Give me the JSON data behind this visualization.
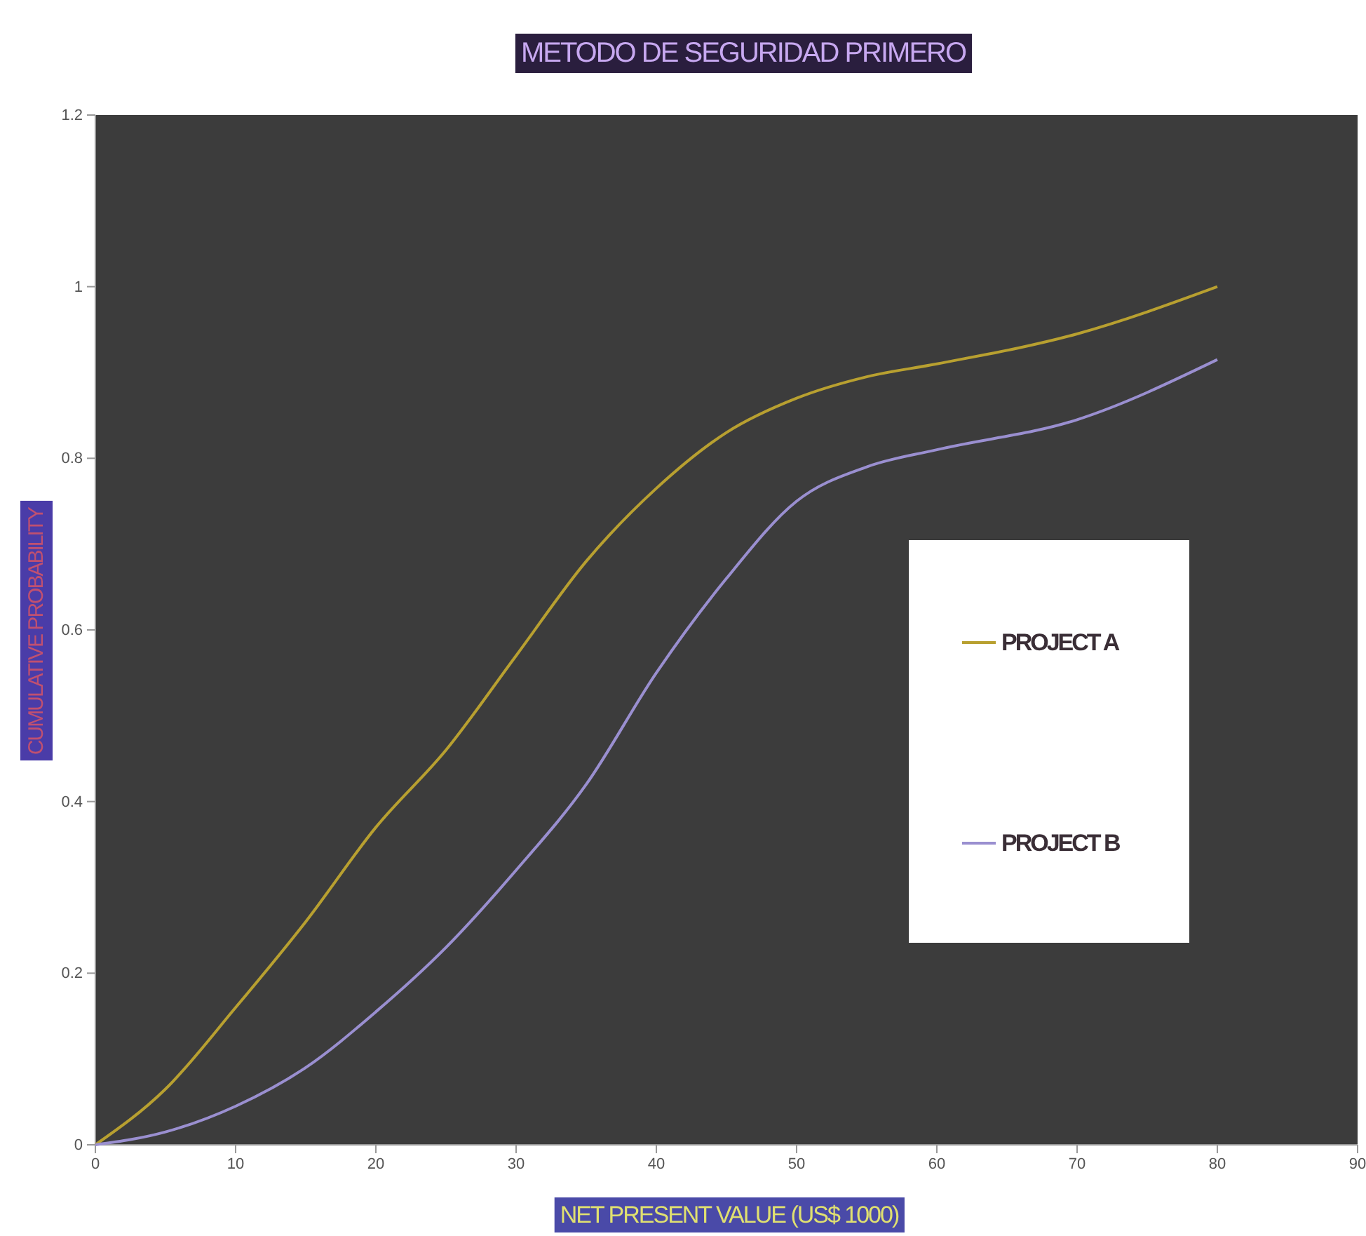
{
  "chart_data": {
    "type": "line",
    "title": "METODO DE SEGURIDAD PRIMERO",
    "xlabel": "NET PRESENT VALUE (US$ 1000)",
    "ylabel": "CUMULATIVE PROBABILITY",
    "x": [
      0,
      5,
      10,
      15,
      20,
      25,
      30,
      35,
      40,
      45,
      50,
      55,
      60,
      70,
      80
    ],
    "series": [
      {
        "name": "PROJECT A",
        "color": "#b8a030",
        "values": [
          0,
          0.065,
          0.16,
          0.26,
          0.37,
          0.46,
          0.57,
          0.68,
          0.765,
          0.83,
          0.87,
          0.895,
          0.91,
          0.945,
          1.0
        ]
      },
      {
        "name": "PROJECT B",
        "color": "#9a8fd0",
        "values": [
          0,
          0.015,
          0.045,
          0.09,
          0.155,
          0.23,
          0.32,
          0.42,
          0.55,
          0.66,
          0.75,
          0.79,
          0.81,
          0.845,
          0.915
        ]
      }
    ],
    "xlim": [
      0,
      90
    ],
    "xticks": [
      0,
      10,
      20,
      30,
      40,
      50,
      60,
      70,
      80,
      90
    ],
    "ylim": [
      0,
      1.2
    ],
    "yticks": [
      0,
      0.2,
      0.4,
      0.6,
      0.8,
      1,
      1.2
    ],
    "grid": false,
    "legend": "right",
    "marker": "none",
    "line_style": "solid"
  }
}
